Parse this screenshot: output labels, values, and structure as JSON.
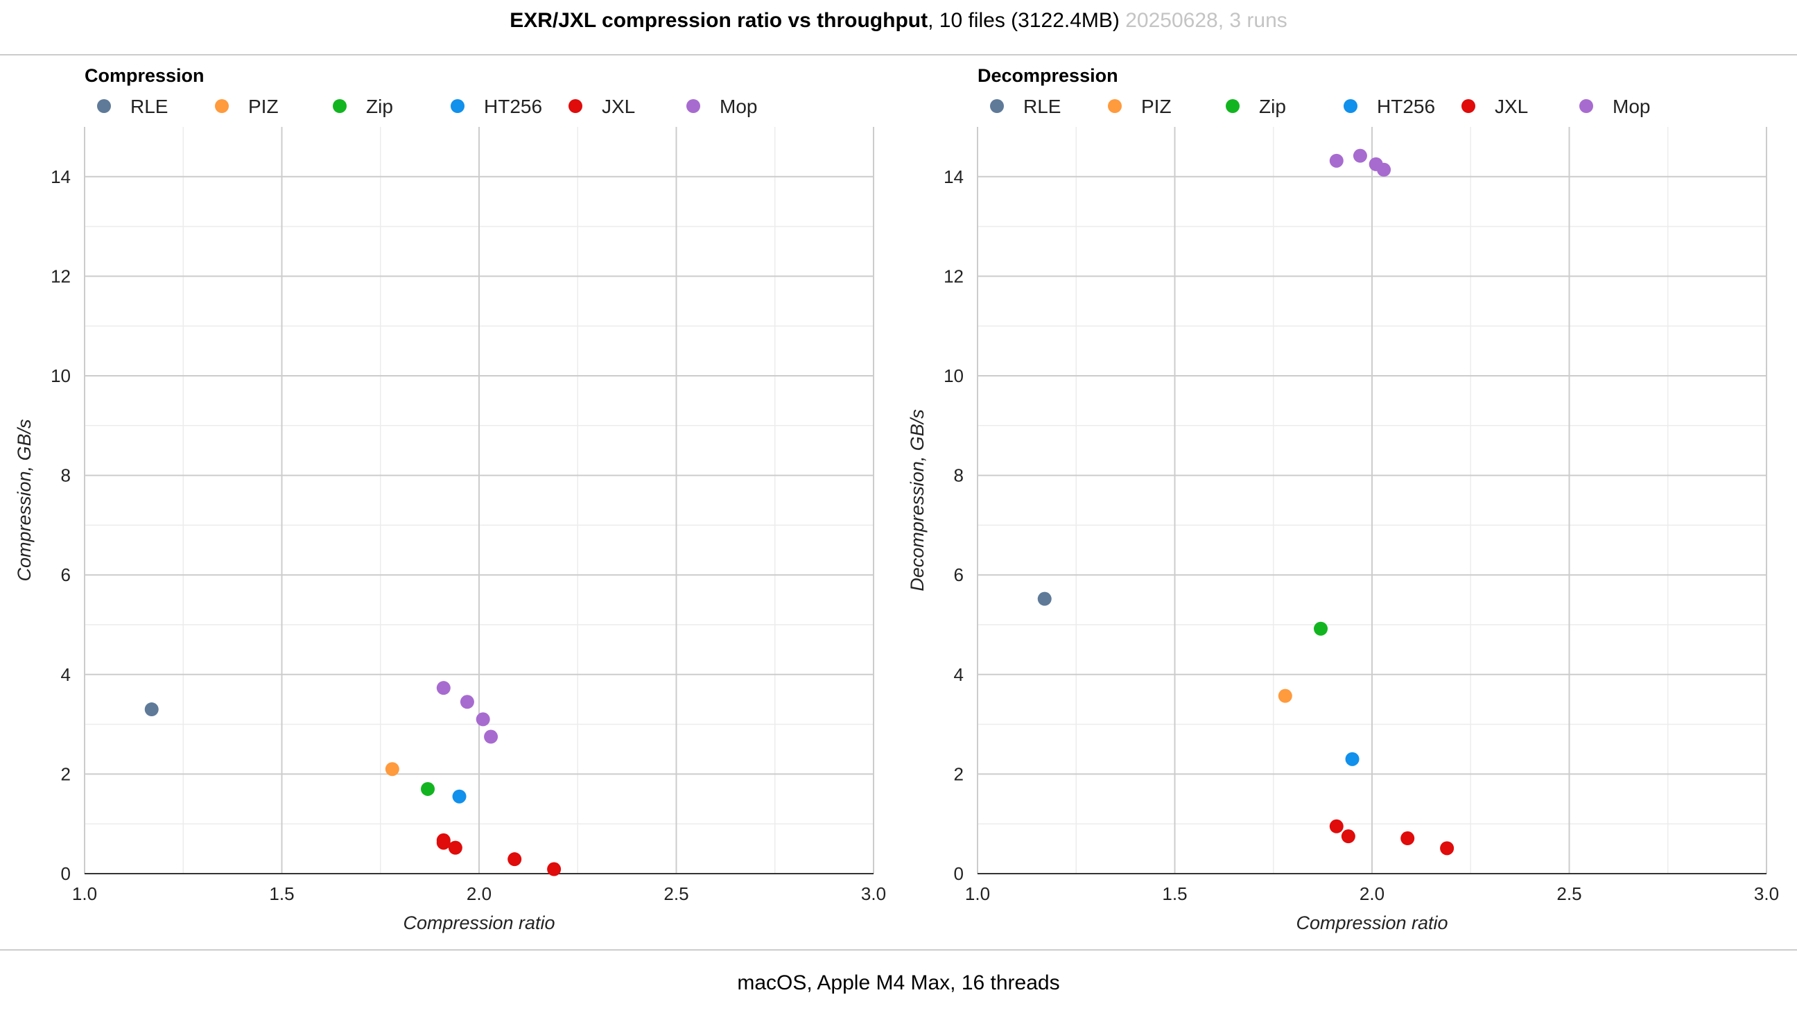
{
  "header": {
    "title": "EXR/JXL compression ratio vs throughput",
    "subtitle": ", 10 files (3122.4MB)",
    "meta": " 20250628, 3 runs"
  },
  "footer": {
    "text": "macOS, Apple M4 Max, 16 threads"
  },
  "colors": {
    "RLE": "#5f7a99",
    "PIZ": "#ff9a3d",
    "Zip": "#12b520",
    "HT256": "#1190ec",
    "JXL": "#e00b0b",
    "Mop": "#a76bd0"
  },
  "chart_data": [
    {
      "type": "scatter",
      "title": "Compression",
      "xlabel": "Compression ratio",
      "ylabel": "Compression, GB/s",
      "xlim": [
        1.0,
        3.0
      ],
      "ylim": [
        0,
        15
      ],
      "xticks": [
        "1.0",
        "1.5",
        "2.0",
        "2.5",
        "3.0"
      ],
      "yticks": [
        "0",
        "2",
        "4",
        "6",
        "8",
        "10",
        "12",
        "14"
      ],
      "grid": true,
      "legend": "top-left",
      "series": [
        {
          "name": "RLE",
          "points": [
            [
              1.17,
              3.3
            ]
          ]
        },
        {
          "name": "PIZ",
          "points": [
            [
              1.78,
              2.1
            ]
          ]
        },
        {
          "name": "Zip",
          "points": [
            [
              1.87,
              1.7
            ]
          ]
        },
        {
          "name": "HT256",
          "points": [
            [
              1.95,
              1.55
            ]
          ]
        },
        {
          "name": "JXL",
          "points": [
            [
              1.91,
              0.67
            ],
            [
              1.91,
              0.62
            ],
            [
              1.94,
              0.52
            ],
            [
              2.09,
              0.29
            ],
            [
              2.19,
              0.09
            ]
          ]
        },
        {
          "name": "Mop",
          "points": [
            [
              1.91,
              3.73
            ],
            [
              1.97,
              3.45
            ],
            [
              2.01,
              3.1
            ],
            [
              2.03,
              2.75
            ]
          ]
        }
      ]
    },
    {
      "type": "scatter",
      "title": "Decompression",
      "xlabel": "Compression ratio",
      "ylabel": "Decompression, GB/s",
      "xlim": [
        1.0,
        3.0
      ],
      "ylim": [
        0,
        15
      ],
      "xticks": [
        "1.0",
        "1.5",
        "2.0",
        "2.5",
        "3.0"
      ],
      "yticks": [
        "0",
        "2",
        "4",
        "6",
        "8",
        "10",
        "12",
        "14"
      ],
      "grid": true,
      "legend": "top-left",
      "series": [
        {
          "name": "RLE",
          "points": [
            [
              1.17,
              5.52
            ]
          ]
        },
        {
          "name": "PIZ",
          "points": [
            [
              1.78,
              3.57
            ]
          ]
        },
        {
          "name": "Zip",
          "points": [
            [
              1.87,
              4.92
            ]
          ]
        },
        {
          "name": "HT256",
          "points": [
            [
              1.95,
              2.3
            ]
          ]
        },
        {
          "name": "JXL",
          "points": [
            [
              1.91,
              0.95
            ],
            [
              1.94,
              0.75
            ],
            [
              2.09,
              0.71
            ],
            [
              2.19,
              0.51
            ]
          ]
        },
        {
          "name": "Mop",
          "points": [
            [
              1.91,
              14.32
            ],
            [
              1.97,
              14.42
            ],
            [
              2.01,
              14.25
            ],
            [
              2.03,
              14.14
            ]
          ]
        }
      ]
    }
  ]
}
